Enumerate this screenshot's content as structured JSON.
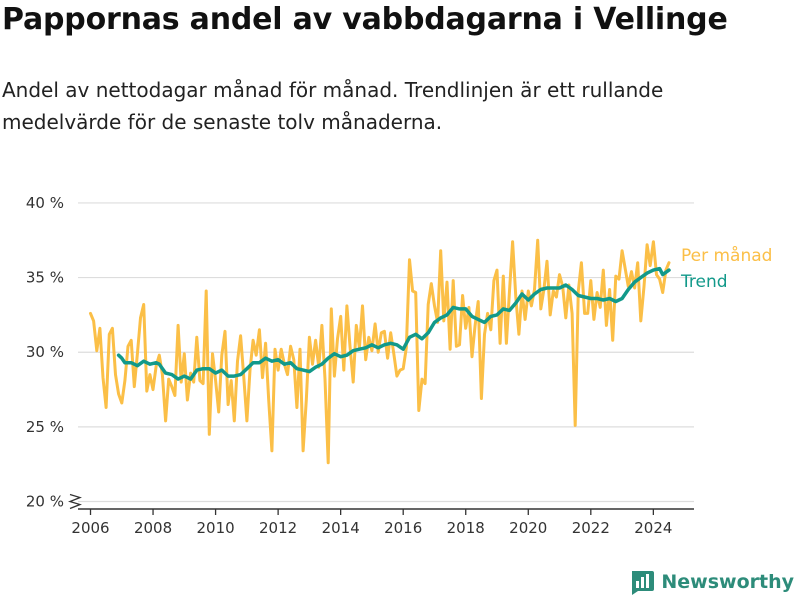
{
  "header": {
    "title": "Pappornas andel av vabbdagarna i Vellinge",
    "subtitle": "Andel av nettodagar månad för månad. Trendlinjen är ett rullande medelvärde för de senaste tolv månaderna."
  },
  "brand": {
    "name": "Newsworthy",
    "icon": "bar-chart-logo-icon"
  },
  "colors": {
    "monthly": "#fbbf47",
    "trend": "#12998a",
    "grid": "#dddddd",
    "axis": "#333333"
  },
  "chart_data": {
    "type": "line",
    "x_axis": {
      "min": 2005.6,
      "max": 2025.3,
      "ticks": [
        2006,
        2008,
        2010,
        2012,
        2014,
        2016,
        2018,
        2020,
        2022,
        2024
      ]
    },
    "y_axis": {
      "min": 19.5,
      "max": 41.0,
      "ticks": [
        20,
        25,
        30,
        35,
        40
      ],
      "tick_labels": [
        "20 %",
        "25 %",
        "30 %",
        "35 %",
        "40 %"
      ],
      "axis_break": true
    },
    "grid": true,
    "legend_placement": "right",
    "series": [
      {
        "name": "Per månad",
        "color": "#fbbf47",
        "points": [
          [
            2006.0,
            32.6
          ],
          [
            2006.1,
            32.1
          ],
          [
            2006.2,
            30.1
          ],
          [
            2006.3,
            31.6
          ],
          [
            2006.4,
            28.3
          ],
          [
            2006.5,
            26.3
          ],
          [
            2006.6,
            31.2
          ],
          [
            2006.7,
            31.6
          ],
          [
            2006.8,
            28.5
          ],
          [
            2006.9,
            27.2
          ],
          [
            2007.0,
            26.6
          ],
          [
            2007.1,
            28.1
          ],
          [
            2007.2,
            30.4
          ],
          [
            2007.3,
            30.8
          ],
          [
            2007.4,
            27.7
          ],
          [
            2007.5,
            29.9
          ],
          [
            2007.6,
            32.3
          ],
          [
            2007.7,
            33.2
          ],
          [
            2007.8,
            27.4
          ],
          [
            2007.9,
            28.5
          ],
          [
            2008.0,
            27.5
          ],
          [
            2008.1,
            29.1
          ],
          [
            2008.2,
            29.8
          ],
          [
            2008.3,
            28.5
          ],
          [
            2008.4,
            25.4
          ],
          [
            2008.5,
            28.2
          ],
          [
            2008.6,
            27.7
          ],
          [
            2008.7,
            27.1
          ],
          [
            2008.8,
            31.8
          ],
          [
            2008.9,
            28.0
          ],
          [
            2009.0,
            29.9
          ],
          [
            2009.1,
            26.8
          ],
          [
            2009.2,
            28.6
          ],
          [
            2009.3,
            28.0
          ],
          [
            2009.4,
            31.0
          ],
          [
            2009.5,
            28.1
          ],
          [
            2009.6,
            27.9
          ],
          [
            2009.7,
            34.1
          ],
          [
            2009.8,
            24.5
          ],
          [
            2009.9,
            29.9
          ],
          [
            2010.0,
            28.1
          ],
          [
            2010.1,
            26.0
          ],
          [
            2010.2,
            29.8
          ],
          [
            2010.3,
            31.4
          ],
          [
            2010.4,
            26.5
          ],
          [
            2010.5,
            28.1
          ],
          [
            2010.6,
            25.4
          ],
          [
            2010.7,
            29.4
          ],
          [
            2010.8,
            31.1
          ],
          [
            2010.9,
            28.4
          ],
          [
            2011.0,
            25.4
          ],
          [
            2011.1,
            28.8
          ],
          [
            2011.2,
            30.8
          ],
          [
            2011.3,
            29.8
          ],
          [
            2011.4,
            31.5
          ],
          [
            2011.5,
            28.3
          ],
          [
            2011.6,
            30.6
          ],
          [
            2011.7,
            26.8
          ],
          [
            2011.8,
            23.4
          ],
          [
            2011.9,
            30.2
          ],
          [
            2012.0,
            28.8
          ],
          [
            2012.1,
            30.2
          ],
          [
            2012.2,
            29.2
          ],
          [
            2012.3,
            28.5
          ],
          [
            2012.4,
            30.4
          ],
          [
            2012.5,
            29.5
          ],
          [
            2012.6,
            26.3
          ],
          [
            2012.7,
            30.2
          ],
          [
            2012.8,
            23.4
          ],
          [
            2012.9,
            26.8
          ],
          [
            2013.0,
            31.0
          ],
          [
            2013.1,
            29.2
          ],
          [
            2013.2,
            30.8
          ],
          [
            2013.3,
            29.0
          ],
          [
            2013.4,
            31.8
          ],
          [
            2013.5,
            28.2
          ],
          [
            2013.6,
            22.6
          ],
          [
            2013.7,
            32.9
          ],
          [
            2013.8,
            28.4
          ],
          [
            2013.9,
            30.9
          ],
          [
            2014.0,
            32.4
          ],
          [
            2014.1,
            28.8
          ],
          [
            2014.2,
            33.1
          ],
          [
            2014.3,
            30.4
          ],
          [
            2014.4,
            28.0
          ],
          [
            2014.5,
            31.8
          ],
          [
            2014.6,
            30.3
          ],
          [
            2014.7,
            33.1
          ],
          [
            2014.8,
            29.5
          ],
          [
            2014.9,
            31.0
          ],
          [
            2015.0,
            30.1
          ],
          [
            2015.1,
            31.9
          ],
          [
            2015.2,
            30.0
          ],
          [
            2015.3,
            31.3
          ],
          [
            2015.4,
            31.4
          ],
          [
            2015.5,
            29.6
          ],
          [
            2015.6,
            31.3
          ],
          [
            2015.7,
            29.9
          ],
          [
            2015.8,
            28.4
          ],
          [
            2015.9,
            28.8
          ],
          [
            2016.0,
            28.9
          ],
          [
            2016.1,
            30.3
          ],
          [
            2016.2,
            36.2
          ],
          [
            2016.3,
            34.1
          ],
          [
            2016.4,
            34.0
          ],
          [
            2016.5,
            26.1
          ],
          [
            2016.6,
            28.2
          ],
          [
            2016.7,
            27.9
          ],
          [
            2016.8,
            33.2
          ],
          [
            2016.9,
            34.6
          ],
          [
            2017.0,
            33.1
          ],
          [
            2017.1,
            32.0
          ],
          [
            2017.2,
            36.8
          ],
          [
            2017.3,
            32.1
          ],
          [
            2017.4,
            34.7
          ],
          [
            2017.5,
            30.2
          ],
          [
            2017.6,
            34.8
          ],
          [
            2017.7,
            30.4
          ],
          [
            2017.8,
            30.5
          ],
          [
            2017.9,
            33.8
          ],
          [
            2018.0,
            31.6
          ],
          [
            2018.1,
            33.0
          ],
          [
            2018.2,
            29.7
          ],
          [
            2018.3,
            31.8
          ],
          [
            2018.4,
            33.4
          ],
          [
            2018.5,
            26.9
          ],
          [
            2018.6,
            31.2
          ],
          [
            2018.7,
            32.6
          ],
          [
            2018.8,
            31.5
          ],
          [
            2018.9,
            34.8
          ],
          [
            2019.0,
            35.5
          ],
          [
            2019.1,
            30.6
          ],
          [
            2019.2,
            35.1
          ],
          [
            2019.3,
            30.6
          ],
          [
            2019.4,
            34.1
          ],
          [
            2019.5,
            37.4
          ],
          [
            2019.6,
            33.7
          ],
          [
            2019.7,
            31.2
          ],
          [
            2019.8,
            34.1
          ],
          [
            2019.9,
            32.2
          ],
          [
            2020.0,
            34.1
          ],
          [
            2020.1,
            33.1
          ],
          [
            2020.2,
            34.2
          ],
          [
            2020.3,
            37.5
          ],
          [
            2020.4,
            32.9
          ],
          [
            2020.5,
            34.2
          ],
          [
            2020.6,
            36.1
          ],
          [
            2020.7,
            32.5
          ],
          [
            2020.8,
            34.1
          ],
          [
            2020.9,
            33.7
          ],
          [
            2021.0,
            35.2
          ],
          [
            2021.1,
            34.4
          ],
          [
            2021.2,
            32.3
          ],
          [
            2021.3,
            34.5
          ],
          [
            2021.4,
            32.6
          ],
          [
            2021.5,
            25.1
          ],
          [
            2021.6,
            34.1
          ],
          [
            2021.7,
            36.0
          ],
          [
            2021.8,
            32.6
          ],
          [
            2021.9,
            32.6
          ],
          [
            2022.0,
            34.8
          ],
          [
            2022.1,
            32.2
          ],
          [
            2022.2,
            34.0
          ],
          [
            2022.3,
            33.0
          ],
          [
            2022.4,
            35.5
          ],
          [
            2022.5,
            31.8
          ],
          [
            2022.6,
            34.2
          ],
          [
            2022.7,
            30.8
          ],
          [
            2022.8,
            35.1
          ],
          [
            2022.9,
            34.9
          ],
          [
            2023.0,
            36.8
          ],
          [
            2023.1,
            35.6
          ],
          [
            2023.2,
            34.4
          ],
          [
            2023.3,
            35.4
          ],
          [
            2023.4,
            34.3
          ],
          [
            2023.5,
            36.0
          ],
          [
            2023.6,
            32.1
          ],
          [
            2023.7,
            34.4
          ],
          [
            2023.8,
            37.2
          ],
          [
            2023.9,
            35.8
          ],
          [
            2024.0,
            37.4
          ],
          [
            2024.1,
            35.2
          ],
          [
            2024.2,
            34.9
          ],
          [
            2024.3,
            34.0
          ],
          [
            2024.4,
            35.5
          ],
          [
            2024.5,
            36.0
          ]
        ]
      },
      {
        "name": "Trend",
        "color": "#12998a",
        "points": [
          [
            2006.9,
            29.8
          ],
          [
            2007.0,
            29.6
          ],
          [
            2007.1,
            29.3
          ],
          [
            2007.3,
            29.3
          ],
          [
            2007.5,
            29.1
          ],
          [
            2007.7,
            29.4
          ],
          [
            2007.9,
            29.2
          ],
          [
            2008.1,
            29.3
          ],
          [
            2008.2,
            29.2
          ],
          [
            2008.4,
            28.6
          ],
          [
            2008.6,
            28.5
          ],
          [
            2008.8,
            28.2
          ],
          [
            2009.0,
            28.4
          ],
          [
            2009.2,
            28.2
          ],
          [
            2009.4,
            28.8
          ],
          [
            2009.6,
            28.9
          ],
          [
            2009.8,
            28.9
          ],
          [
            2010.0,
            28.6
          ],
          [
            2010.2,
            28.8
          ],
          [
            2010.4,
            28.4
          ],
          [
            2010.6,
            28.4
          ],
          [
            2010.8,
            28.5
          ],
          [
            2011.0,
            28.9
          ],
          [
            2011.2,
            29.3
          ],
          [
            2011.4,
            29.3
          ],
          [
            2011.6,
            29.6
          ],
          [
            2011.8,
            29.4
          ],
          [
            2012.0,
            29.5
          ],
          [
            2012.2,
            29.2
          ],
          [
            2012.4,
            29.3
          ],
          [
            2012.6,
            28.9
          ],
          [
            2012.8,
            28.8
          ],
          [
            2013.0,
            28.7
          ],
          [
            2013.2,
            29.0
          ],
          [
            2013.4,
            29.2
          ],
          [
            2013.6,
            29.6
          ],
          [
            2013.8,
            29.9
          ],
          [
            2014.0,
            29.7
          ],
          [
            2014.2,
            29.8
          ],
          [
            2014.4,
            30.1
          ],
          [
            2014.6,
            30.2
          ],
          [
            2014.8,
            30.3
          ],
          [
            2015.0,
            30.5
          ],
          [
            2015.2,
            30.3
          ],
          [
            2015.4,
            30.5
          ],
          [
            2015.6,
            30.6
          ],
          [
            2015.8,
            30.5
          ],
          [
            2016.0,
            30.2
          ],
          [
            2016.2,
            31.0
          ],
          [
            2016.4,
            31.2
          ],
          [
            2016.6,
            30.9
          ],
          [
            2016.8,
            31.3
          ],
          [
            2017.0,
            32.0
          ],
          [
            2017.2,
            32.3
          ],
          [
            2017.4,
            32.5
          ],
          [
            2017.6,
            33.0
          ],
          [
            2017.8,
            32.9
          ],
          [
            2018.0,
            32.9
          ],
          [
            2018.2,
            32.4
          ],
          [
            2018.4,
            32.2
          ],
          [
            2018.6,
            32.0
          ],
          [
            2018.8,
            32.4
          ],
          [
            2019.0,
            32.5
          ],
          [
            2019.2,
            32.9
          ],
          [
            2019.4,
            32.8
          ],
          [
            2019.6,
            33.3
          ],
          [
            2019.8,
            33.9
          ],
          [
            2020.0,
            33.5
          ],
          [
            2020.2,
            33.9
          ],
          [
            2020.4,
            34.2
          ],
          [
            2020.6,
            34.3
          ],
          [
            2020.8,
            34.3
          ],
          [
            2021.0,
            34.3
          ],
          [
            2021.2,
            34.5
          ],
          [
            2021.4,
            34.2
          ],
          [
            2021.6,
            33.8
          ],
          [
            2021.8,
            33.7
          ],
          [
            2022.0,
            33.6
          ],
          [
            2022.2,
            33.6
          ],
          [
            2022.4,
            33.5
          ],
          [
            2022.6,
            33.6
          ],
          [
            2022.8,
            33.4
          ],
          [
            2023.0,
            33.6
          ],
          [
            2023.2,
            34.2
          ],
          [
            2023.4,
            34.7
          ],
          [
            2023.6,
            35.0
          ],
          [
            2023.8,
            35.3
          ],
          [
            2024.0,
            35.5
          ],
          [
            2024.2,
            35.6
          ],
          [
            2024.3,
            35.2
          ],
          [
            2024.5,
            35.5
          ]
        ]
      }
    ]
  }
}
